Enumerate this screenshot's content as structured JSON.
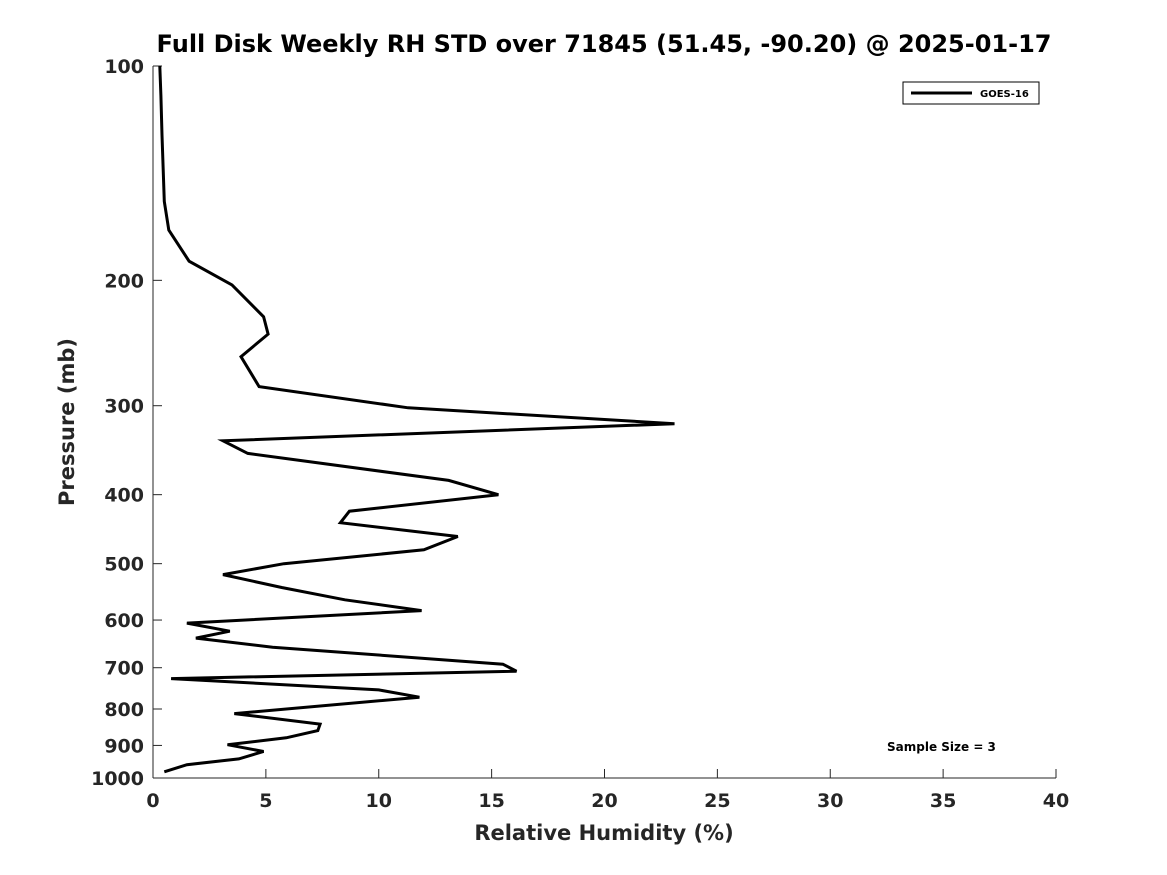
{
  "chart_data": {
    "type": "line",
    "title": "Full Disk Weekly RH STD over 71845 (51.45, -90.20) @ 2025-01-17",
    "xlabel": "Relative Humidity (%)",
    "ylabel": "Pressure (mb)",
    "xlim": [
      0,
      40
    ],
    "ylim": [
      100,
      1000
    ],
    "y_scale": "log",
    "y_reversed": true,
    "x_ticks": [
      "0",
      "5",
      "10",
      "15",
      "20",
      "25",
      "30",
      "35",
      "40"
    ],
    "y_ticks": [
      "100",
      "200",
      "300",
      "400",
      "500",
      "600",
      "700",
      "800",
      "900",
      "1000"
    ],
    "legend_position": "top-right",
    "grid": false,
    "series": [
      {
        "name": "GOES-16",
        "color": "#000000",
        "points": [
          [
            0.3,
            100
          ],
          [
            0.35,
            110
          ],
          [
            0.4,
            125
          ],
          [
            0.5,
            155
          ],
          [
            0.7,
            170
          ],
          [
            1.6,
            188
          ],
          [
            3.5,
            203
          ],
          [
            4.9,
            225
          ],
          [
            5.1,
            238
          ],
          [
            3.9,
            256
          ],
          [
            4.7,
            282
          ],
          [
            11.3,
            302
          ],
          [
            23.1,
            318
          ],
          [
            3.1,
            336
          ],
          [
            4.2,
            350
          ],
          [
            13.1,
            382
          ],
          [
            15.3,
            400
          ],
          [
            8.7,
            422
          ],
          [
            8.3,
            438
          ],
          [
            13.5,
            458
          ],
          [
            12.0,
            478
          ],
          [
            5.8,
            500
          ],
          [
            3.1,
            518
          ],
          [
            5.7,
            540
          ],
          [
            8.5,
            562
          ],
          [
            11.9,
            582
          ],
          [
            1.5,
            606
          ],
          [
            3.4,
            622
          ],
          [
            1.9,
            636
          ],
          [
            5.3,
            655
          ],
          [
            15.5,
            692
          ],
          [
            16.1,
            708
          ],
          [
            0.8,
            725
          ],
          [
            10.0,
            752
          ],
          [
            11.8,
            770
          ],
          [
            3.6,
            812
          ],
          [
            7.4,
            840
          ],
          [
            7.3,
            858
          ],
          [
            5.9,
            878
          ],
          [
            3.3,
            898
          ],
          [
            4.9,
            918
          ],
          [
            3.8,
            940
          ],
          [
            1.5,
            958
          ],
          [
            0.5,
            980
          ]
        ]
      }
    ],
    "annotations": [
      "Sample Size = 3"
    ]
  }
}
